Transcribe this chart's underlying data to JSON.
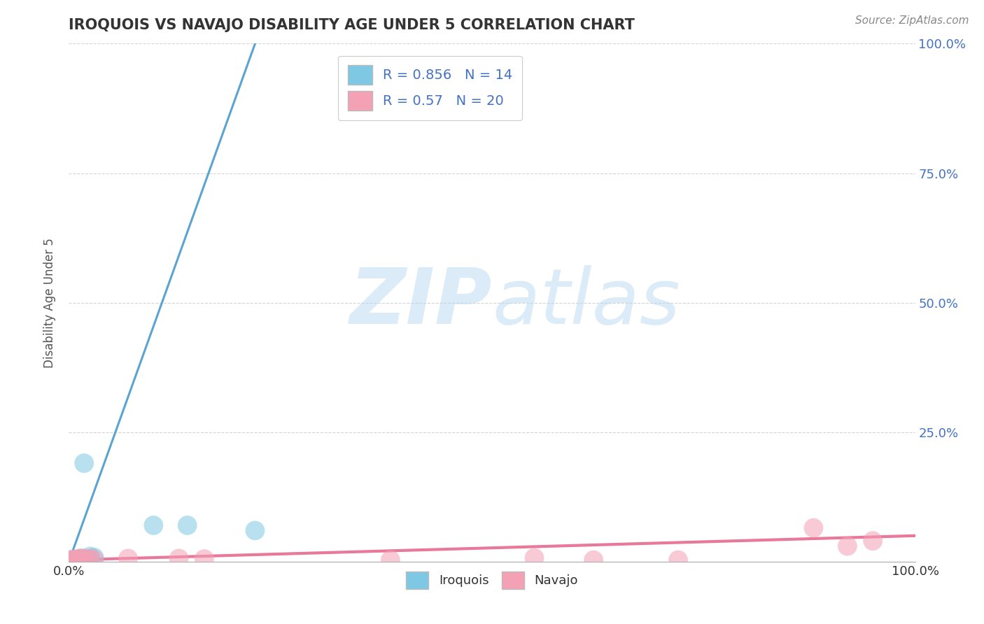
{
  "title": "IROQUOIS VS NAVAJO DISABILITY AGE UNDER 5 CORRELATION CHART",
  "source": "Source: ZipAtlas.com",
  "ylabel": "Disability Age Under 5",
  "xlim": [
    0,
    1
  ],
  "ylim": [
    0,
    1
  ],
  "xticks": [
    0.0,
    0.25,
    0.5,
    0.75,
    1.0
  ],
  "xtick_labels_bottom": [
    "0.0%",
    "",
    "",
    "",
    "100.0%"
  ],
  "yticks_right": [
    0.0,
    0.25,
    0.5,
    0.75,
    1.0
  ],
  "ytick_labels_right": [
    "",
    "25.0%",
    "50.0%",
    "75.0%",
    "100.0%"
  ],
  "iroquois_color": "#7ec8e3",
  "navajo_color": "#f4a0b5",
  "iroquois_line_color": "#5ba3d0",
  "navajo_line_color": "#e8799a",
  "iroquois_R": 0.856,
  "iroquois_N": 14,
  "navajo_R": 0.57,
  "navajo_N": 20,
  "iroquois_points_x": [
    0.003,
    0.005,
    0.007,
    0.009,
    0.012,
    0.015,
    0.018,
    0.02,
    0.022,
    0.025,
    0.03,
    0.1,
    0.14,
    0.22
  ],
  "iroquois_points_y": [
    0.003,
    0.004,
    0.003,
    0.004,
    0.005,
    0.006,
    0.19,
    0.004,
    0.005,
    0.01,
    0.008,
    0.07,
    0.07,
    0.06
  ],
  "navajo_points_x": [
    0.003,
    0.005,
    0.007,
    0.009,
    0.012,
    0.015,
    0.018,
    0.022,
    0.025,
    0.03,
    0.07,
    0.13,
    0.16,
    0.38,
    0.55,
    0.62,
    0.72,
    0.88,
    0.92,
    0.95
  ],
  "navajo_points_y": [
    0.003,
    0.004,
    0.003,
    0.005,
    0.004,
    0.007,
    0.005,
    0.004,
    0.006,
    0.004,
    0.006,
    0.006,
    0.005,
    0.003,
    0.007,
    0.003,
    0.003,
    0.065,
    0.03,
    0.04
  ],
  "iroquois_line_x": [
    0.0,
    0.22
  ],
  "iroquois_line_y": [
    0.0,
    1.0
  ],
  "navajo_line_x": [
    0.0,
    1.0
  ],
  "navajo_line_y": [
    0.003,
    0.05
  ],
  "background_color": "#ffffff",
  "grid_color": "#d0d0d0",
  "watermark_zip": "ZIP",
  "watermark_atlas": "atlas",
  "watermark_color": "#b8d8f0",
  "title_color": "#333333",
  "axis_label_color": "#555555",
  "tick_color_x": "#333333",
  "tick_color_y_right": "#4472c4",
  "legend_label_color": "#4472c4"
}
